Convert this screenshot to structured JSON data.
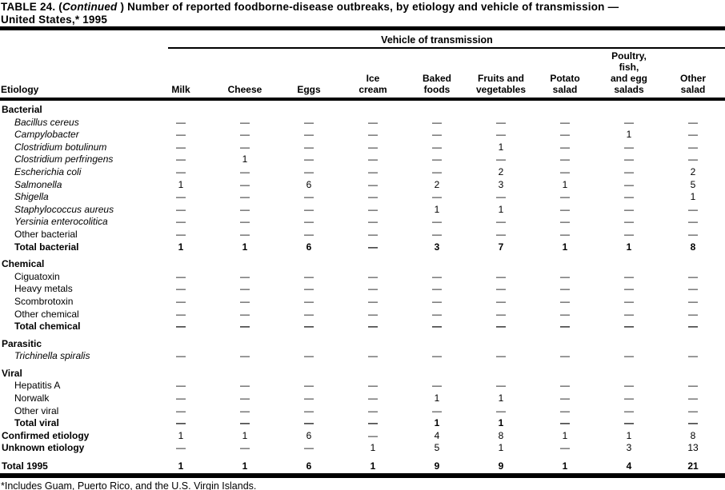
{
  "title": {
    "prefix": "TABLE 24. (",
    "continued": "Continued",
    "suffix": " ) Number of reported foodborne-disease outbreaks, by etiology and vehicle of transmission —",
    "line2": "United States,* 1995"
  },
  "table": {
    "spanner": "Vehicle of transmission",
    "etiology_header": "Etiology",
    "columns": [
      "Milk",
      "Cheese",
      "Eggs",
      "Ice\ncream",
      "Baked\nfoods",
      "Fruits and\nvegetables",
      "Potato\nsalad",
      "Poultry,\nfish,\nand egg\nsalads",
      "Other\nsalad"
    ],
    "rows": [
      {
        "type": "section",
        "label": "Bacterial"
      },
      {
        "type": "item",
        "italic": true,
        "label": "Bacillus cereus",
        "values": [
          "—",
          "—",
          "—",
          "—",
          "—",
          "—",
          "—",
          "—",
          "—"
        ]
      },
      {
        "type": "item",
        "italic": true,
        "label": "Campylobacter",
        "values": [
          "—",
          "—",
          "—",
          "—",
          "—",
          "—",
          "—",
          "1",
          "—"
        ]
      },
      {
        "type": "item",
        "italic": true,
        "label": "Clostridium botulinum",
        "values": [
          "—",
          "—",
          "—",
          "—",
          "—",
          "1",
          "—",
          "—",
          "—"
        ]
      },
      {
        "type": "item",
        "italic": true,
        "label": "Clostridium perfringens",
        "values": [
          "—",
          "1",
          "—",
          "—",
          "—",
          "—",
          "—",
          "—",
          "—"
        ]
      },
      {
        "type": "item",
        "italic": true,
        "label": "Escherichia coli",
        "values": [
          "—",
          "—",
          "—",
          "—",
          "—",
          "2",
          "—",
          "—",
          "2"
        ]
      },
      {
        "type": "item",
        "italic": true,
        "label": "Salmonella",
        "values": [
          "1",
          "—",
          "6",
          "—",
          "2",
          "3",
          "1",
          "—",
          "5"
        ]
      },
      {
        "type": "item",
        "italic": true,
        "label": "Shigella",
        "values": [
          "—",
          "—",
          "—",
          "—",
          "—",
          "—",
          "—",
          "—",
          "1"
        ]
      },
      {
        "type": "item",
        "italic": true,
        "label": "Staphylococcus aureus",
        "values": [
          "—",
          "—",
          "—",
          "—",
          "1",
          "1",
          "—",
          "—",
          "—"
        ]
      },
      {
        "type": "item",
        "italic": true,
        "label": "Yersinia enterocolitica",
        "values": [
          "—",
          "—",
          "—",
          "—",
          "—",
          "—",
          "—",
          "—",
          "—"
        ]
      },
      {
        "type": "item",
        "italic": false,
        "label": "Other bacterial",
        "values": [
          "—",
          "—",
          "—",
          "—",
          "—",
          "—",
          "—",
          "—",
          "—"
        ]
      },
      {
        "type": "total",
        "label": "Total bacterial",
        "values": [
          "1",
          "1",
          "6",
          "—",
          "3",
          "7",
          "1",
          "1",
          "8"
        ]
      },
      {
        "type": "section",
        "label": "Chemical"
      },
      {
        "type": "item",
        "italic": false,
        "label": "Ciguatoxin",
        "values": [
          "—",
          "—",
          "—",
          "—",
          "—",
          "—",
          "—",
          "—",
          "—"
        ]
      },
      {
        "type": "item",
        "italic": false,
        "label": "Heavy metals",
        "values": [
          "—",
          "—",
          "—",
          "—",
          "—",
          "—",
          "—",
          "—",
          "—"
        ]
      },
      {
        "type": "item",
        "italic": false,
        "label": "Scombrotoxin",
        "values": [
          "—",
          "—",
          "—",
          "—",
          "—",
          "—",
          "—",
          "—",
          "—"
        ]
      },
      {
        "type": "item",
        "italic": false,
        "label": "Other chemical",
        "values": [
          "—",
          "—",
          "—",
          "—",
          "—",
          "—",
          "—",
          "—",
          "—"
        ]
      },
      {
        "type": "total",
        "label": "Total chemical",
        "values": [
          "—",
          "—",
          "—",
          "—",
          "—",
          "—",
          "—",
          "—",
          "—"
        ]
      },
      {
        "type": "section",
        "label": "Parasitic"
      },
      {
        "type": "item",
        "italic": true,
        "label": "Trichinella spiralis",
        "values": [
          "—",
          "—",
          "—",
          "—",
          "—",
          "—",
          "—",
          "—",
          "—"
        ]
      },
      {
        "type": "section",
        "label": "Viral"
      },
      {
        "type": "item",
        "italic": false,
        "label": "Hepatitis A",
        "values": [
          "—",
          "—",
          "—",
          "—",
          "—",
          "—",
          "—",
          "—",
          "—"
        ]
      },
      {
        "type": "item",
        "italic": false,
        "label": "Norwalk",
        "values": [
          "—",
          "—",
          "—",
          "—",
          "1",
          "1",
          "—",
          "—",
          "—"
        ]
      },
      {
        "type": "item",
        "italic": false,
        "label": "Other viral",
        "values": [
          "—",
          "—",
          "—",
          "—",
          "—",
          "—",
          "—",
          "—",
          "—"
        ]
      },
      {
        "type": "total",
        "label": "Total viral",
        "values": [
          "—",
          "—",
          "—",
          "—",
          "1",
          "1",
          "—",
          "—",
          "—"
        ]
      },
      {
        "type": "grand",
        "label": "Confirmed etiology",
        "values": [
          "1",
          "1",
          "6",
          "—",
          "4",
          "8",
          "1",
          "1",
          "8"
        ]
      },
      {
        "type": "grand",
        "label": "Unknown etiology",
        "values": [
          "—",
          "—",
          "—",
          "1",
          "5",
          "1",
          "—",
          "3",
          "13"
        ]
      },
      {
        "type": "grand-final",
        "label": "Total 1995",
        "values": [
          "1",
          "1",
          "6",
          "1",
          "9",
          "9",
          "1",
          "4",
          "21"
        ]
      }
    ]
  },
  "footnote": "*Includes Guam, Puerto Rico, and the U.S. Virgin Islands."
}
